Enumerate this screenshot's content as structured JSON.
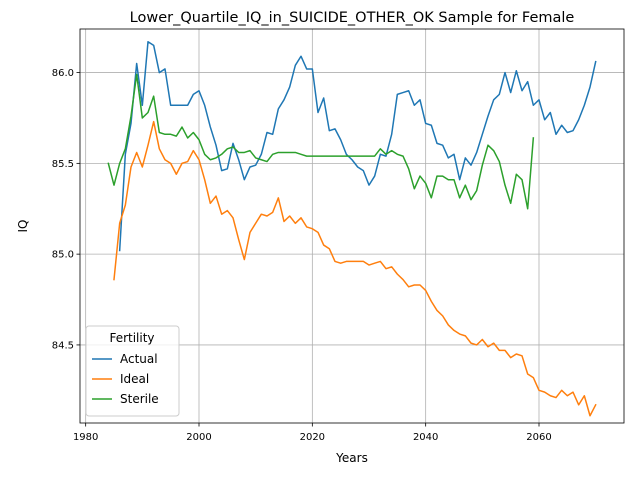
{
  "chart_data": {
    "type": "line",
    "title": "Lower_Quartile_IQ_in_SUICIDE_OTHER_OK Sample for Female",
    "xlabel": "Years",
    "ylabel": "IQ",
    "xlim": [
      1979,
      2075
    ],
    "ylim": [
      84.07,
      86.24
    ],
    "xticks": [
      1980,
      2000,
      2020,
      2040,
      2060
    ],
    "yticks": [
      84.5,
      85.0,
      85.5,
      86.0
    ],
    "grid": true,
    "legend": {
      "title": "Fertility",
      "placement": "lower-left"
    },
    "series": [
      {
        "name": "Actual",
        "color": "#1f77b4",
        "x": [
          1986,
          1987,
          1988,
          1989,
          1990,
          1991,
          1992,
          1993,
          1994,
          1995,
          1996,
          1997,
          1998,
          1999,
          2000,
          2001,
          2002,
          2003,
          2004,
          2005,
          2006,
          2007,
          2008,
          2009,
          2010,
          2011,
          2012,
          2013,
          2014,
          2015,
          2016,
          2017,
          2018,
          2019,
          2020,
          2021,
          2022,
          2023,
          2024,
          2025,
          2026,
          2027,
          2028,
          2029,
          2030,
          2031,
          2032,
          2033,
          2034,
          2035,
          2036,
          2037,
          2038,
          2039,
          2040,
          2041,
          2042,
          2043,
          2044,
          2045,
          2046,
          2047,
          2048,
          2049,
          2050,
          2051,
          2052,
          2053,
          2054,
          2055,
          2056,
          2057,
          2058,
          2059,
          2060,
          2061,
          2062,
          2063,
          2064,
          2065,
          2066,
          2067,
          2068,
          2069,
          2070
        ],
        "values": [
          85.02,
          85.55,
          85.72,
          86.05,
          85.82,
          86.17,
          86.15,
          86.0,
          86.02,
          85.82,
          85.82,
          85.82,
          85.82,
          85.88,
          85.9,
          85.82,
          85.7,
          85.6,
          85.46,
          85.47,
          85.61,
          85.52,
          85.41,
          85.48,
          85.49,
          85.55,
          85.67,
          85.66,
          85.8,
          85.85,
          85.92,
          86.04,
          86.09,
          86.02,
          86.02,
          85.78,
          85.86,
          85.68,
          85.69,
          85.63,
          85.55,
          85.52,
          85.48,
          85.46,
          85.38,
          85.43,
          85.55,
          85.54,
          85.66,
          85.88,
          85.89,
          85.9,
          85.82,
          85.85,
          85.72,
          85.71,
          85.61,
          85.6,
          85.53,
          85.55,
          85.41,
          85.53,
          85.49,
          85.56,
          85.66,
          85.76,
          85.85,
          85.88,
          86.0,
          85.89,
          86.01,
          85.9,
          85.95,
          85.82,
          85.85,
          85.74,
          85.78,
          85.66,
          85.71,
          85.67,
          85.68,
          85.74,
          85.82,
          85.92,
          86.06
        ]
      },
      {
        "name": "Ideal",
        "color": "#ff7f0e",
        "x": [
          1985,
          1986,
          1987,
          1988,
          1989,
          1990,
          1991,
          1992,
          1993,
          1994,
          1995,
          1996,
          1997,
          1998,
          1999,
          2000,
          2001,
          2002,
          2003,
          2004,
          2005,
          2006,
          2007,
          2008,
          2009,
          2010,
          2011,
          2012,
          2013,
          2014,
          2015,
          2016,
          2017,
          2018,
          2019,
          2020,
          2021,
          2022,
          2023,
          2024,
          2025,
          2026,
          2027,
          2028,
          2029,
          2030,
          2031,
          2032,
          2033,
          2034,
          2035,
          2036,
          2037,
          2038,
          2039,
          2040,
          2041,
          2042,
          2043,
          2044,
          2045,
          2046,
          2047,
          2048,
          2049,
          2050,
          2051,
          2052,
          2053,
          2054,
          2055,
          2056,
          2057,
          2058,
          2059,
          2060,
          2061,
          2062,
          2063,
          2064,
          2065,
          2066,
          2067,
          2068,
          2069,
          2070
        ],
        "values": [
          84.86,
          85.17,
          85.27,
          85.48,
          85.56,
          85.48,
          85.6,
          85.73,
          85.58,
          85.52,
          85.5,
          85.44,
          85.5,
          85.51,
          85.57,
          85.52,
          85.41,
          85.28,
          85.32,
          85.22,
          85.24,
          85.2,
          85.08,
          84.97,
          85.12,
          85.17,
          85.22,
          85.21,
          85.23,
          85.31,
          85.18,
          85.21,
          85.17,
          85.2,
          85.15,
          85.14,
          85.12,
          85.05,
          85.03,
          84.96,
          84.95,
          84.96,
          84.96,
          84.96,
          84.96,
          84.94,
          84.95,
          84.96,
          84.92,
          84.93,
          84.89,
          84.86,
          84.82,
          84.83,
          84.83,
          84.8,
          84.74,
          84.69,
          84.66,
          84.61,
          84.58,
          84.56,
          84.55,
          84.51,
          84.5,
          84.53,
          84.49,
          84.51,
          84.47,
          84.47,
          84.43,
          84.45,
          84.44,
          84.34,
          84.32,
          84.25,
          84.24,
          84.22,
          84.21,
          84.25,
          84.22,
          84.24,
          84.17,
          84.22,
          84.11,
          84.17
        ]
      },
      {
        "name": "Sterile",
        "color": "#2ca02c",
        "x": [
          1984,
          1985,
          1986,
          1987,
          1988,
          1989,
          1990,
          1991,
          1992,
          1993,
          1994,
          1995,
          1996,
          1997,
          1998,
          1999,
          2000,
          2001,
          2002,
          2003,
          2004,
          2005,
          2006,
          2007,
          2008,
          2009,
          2010,
          2011,
          2012,
          2013,
          2014,
          2015,
          2016,
          2017,
          2018,
          2019,
          2020,
          2021,
          2022,
          2023,
          2024,
          2025,
          2026,
          2027,
          2028,
          2029,
          2030,
          2031,
          2032,
          2033,
          2034,
          2035,
          2036,
          2037,
          2038,
          2039,
          2040,
          2041,
          2042,
          2043,
          2044,
          2045,
          2046,
          2047,
          2048,
          2049,
          2050,
          2051,
          2052,
          2053,
          2054,
          2055,
          2056,
          2057,
          2058,
          2059
        ],
        "values": [
          85.5,
          85.38,
          85.5,
          85.58,
          85.76,
          85.99,
          85.75,
          85.78,
          85.87,
          85.67,
          85.66,
          85.66,
          85.65,
          85.7,
          85.64,
          85.67,
          85.63,
          85.55,
          85.52,
          85.53,
          85.55,
          85.58,
          85.59,
          85.56,
          85.56,
          85.57,
          85.53,
          85.52,
          85.51,
          85.55,
          85.56,
          85.56,
          85.56,
          85.56,
          85.55,
          85.54,
          85.54,
          85.54,
          85.54,
          85.54,
          85.54,
          85.54,
          85.54,
          85.54,
          85.54,
          85.54,
          85.54,
          85.54,
          85.58,
          85.55,
          85.57,
          85.55,
          85.54,
          85.47,
          85.36,
          85.43,
          85.39,
          85.31,
          85.43,
          85.43,
          85.41,
          85.41,
          85.31,
          85.38,
          85.3,
          85.35,
          85.49,
          85.6,
          85.57,
          85.51,
          85.38,
          85.28,
          85.44,
          85.41,
          85.25,
          85.64
        ]
      }
    ]
  }
}
